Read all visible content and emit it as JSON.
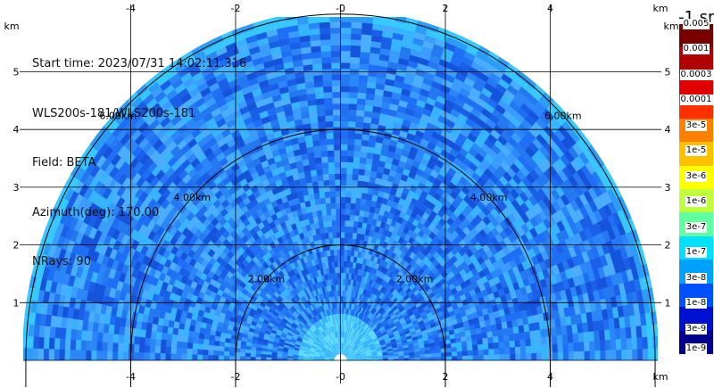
{
  "info": {
    "start_time": "Start time: 2023/07/31 14:02:11.316",
    "instrument": "WLS200s-181/WLS200s-181",
    "field": "Field: BETA",
    "azimuth": "Azimuth(deg): 170.00",
    "nrays": "NRays: 90"
  },
  "axes": {
    "unit_label": "km",
    "x_ticks": [
      "-4",
      "-2",
      "-0",
      "2",
      "4"
    ],
    "x_tick_values": [
      -4,
      -2,
      0,
      2,
      4
    ],
    "y_ticks": [
      "1",
      "2",
      "3",
      "4",
      "5"
    ],
    "y_tick_values": [
      1,
      2,
      3,
      4,
      5
    ],
    "x_range_km": [
      -6.05,
      6.05
    ],
    "y_range_km": [
      0,
      5.95
    ]
  },
  "range_rings": [
    {
      "radius_km": 2,
      "label": "2.00km"
    },
    {
      "radius_km": 4,
      "label": "4.00km"
    },
    {
      "radius_km": 6,
      "label": "6.00km"
    }
  ],
  "colorbar": {
    "unit": "-1 sr",
    "labels": [
      "0.005",
      "0.001",
      "0.0003",
      "0.0001",
      "3e-5",
      "1e-5",
      "3e-6",
      "1e-6",
      "3e-7",
      "1e-7",
      "3e-8",
      "1e-8",
      "3e-9",
      "1e-9"
    ],
    "colors": [
      "#7a0000",
      "#b00000",
      "#e00000",
      "#ff3000",
      "#ff8000",
      "#ffc000",
      "#ffff00",
      "#c0ff40",
      "#60ffa0",
      "#00e0ff",
      "#00a0ff",
      "#0050ff",
      "#0010d0",
      "#000090"
    ]
  },
  "scan_colors": [
    "#1e6ff5",
    "#2b86f8",
    "#3a9cfc",
    "#1a5fe8",
    "#4aaefc",
    "#2478f0",
    "#1553dc",
    "#36b4ff"
  ]
}
